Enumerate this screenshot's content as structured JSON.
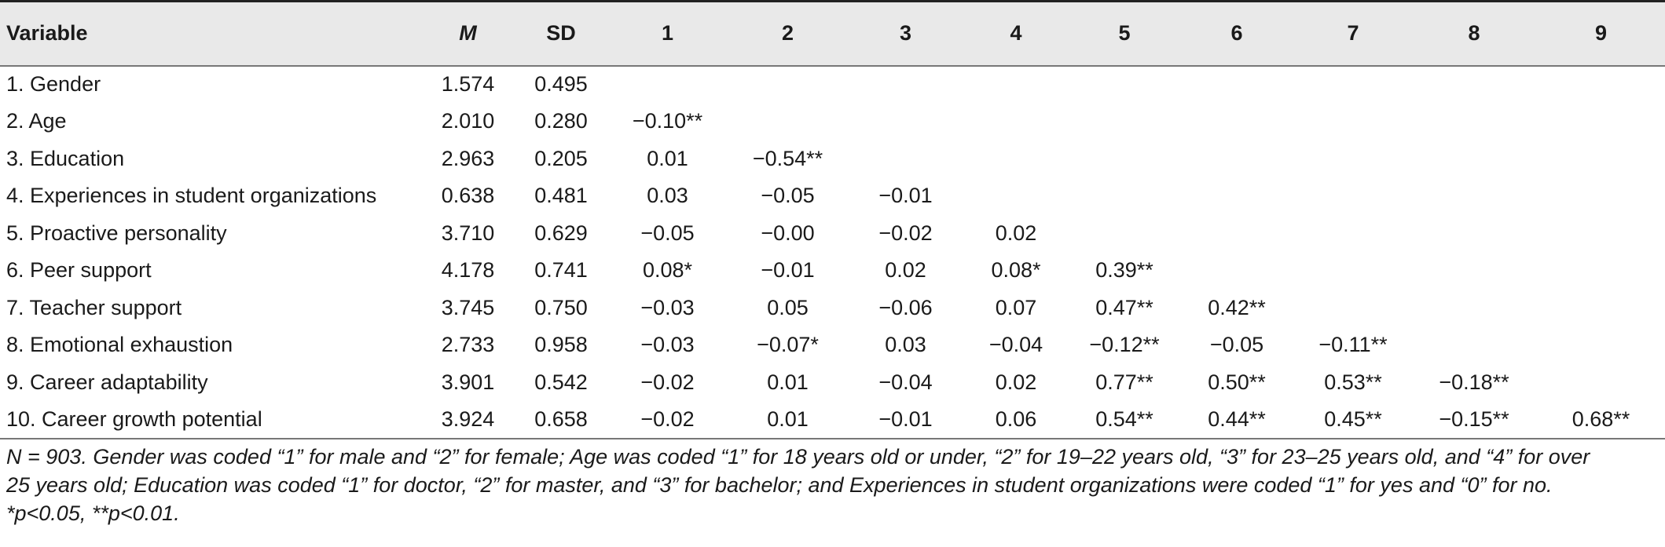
{
  "table": {
    "headers": [
      "Variable",
      "M",
      "SD",
      "1",
      "2",
      "3",
      "4",
      "5",
      "6",
      "7",
      "8",
      "9"
    ],
    "rows": [
      {
        "variable": "1. Gender",
        "m": "1.574",
        "sd": "0.495",
        "c1": "",
        "c2": "",
        "c3": "",
        "c4": "",
        "c5": "",
        "c6": "",
        "c7": "",
        "c8": "",
        "c9": ""
      },
      {
        "variable": "2. Age",
        "m": "2.010",
        "sd": "0.280",
        "c1": "−0.10**",
        "c2": "",
        "c3": "",
        "c4": "",
        "c5": "",
        "c6": "",
        "c7": "",
        "c8": "",
        "c9": ""
      },
      {
        "variable": "3. Education",
        "m": "2.963",
        "sd": "0.205",
        "c1": "0.01",
        "c2": "−0.54**",
        "c3": "",
        "c4": "",
        "c5": "",
        "c6": "",
        "c7": "",
        "c8": "",
        "c9": ""
      },
      {
        "variable": "4. Experiences in student organizations",
        "m": "0.638",
        "sd": "0.481",
        "c1": "0.03",
        "c2": "−0.05",
        "c3": "−0.01",
        "c4": "",
        "c5": "",
        "c6": "",
        "c7": "",
        "c8": "",
        "c9": ""
      },
      {
        "variable": "5. Proactive personality",
        "m": "3.710",
        "sd": "0.629",
        "c1": "−0.05",
        "c2": "−0.00",
        "c3": "−0.02",
        "c4": "0.02",
        "c5": "",
        "c6": "",
        "c7": "",
        "c8": "",
        "c9": ""
      },
      {
        "variable": "6. Peer support",
        "m": "4.178",
        "sd": "0.741",
        "c1": "0.08*",
        "c2": "−0.01",
        "c3": "0.02",
        "c4": "0.08*",
        "c5": "0.39**",
        "c6": "",
        "c7": "",
        "c8": "",
        "c9": ""
      },
      {
        "variable": "7. Teacher support",
        "m": "3.745",
        "sd": "0.750",
        "c1": "−0.03",
        "c2": "0.05",
        "c3": "−0.06",
        "c4": "0.07",
        "c5": "0.47**",
        "c6": "0.42**",
        "c7": "",
        "c8": "",
        "c9": ""
      },
      {
        "variable": "8. Emotional exhaustion",
        "m": "2.733",
        "sd": "0.958",
        "c1": "−0.03",
        "c2": "−0.07*",
        "c3": "0.03",
        "c4": "−0.04",
        "c5": "−0.12**",
        "c6": "−0.05",
        "c7": "−0.11**",
        "c8": "",
        "c9": ""
      },
      {
        "variable": "9. Career adaptability",
        "m": "3.901",
        "sd": "0.542",
        "c1": "−0.02",
        "c2": "0.01",
        "c3": "−0.04",
        "c4": "0.02",
        "c5": "0.77**",
        "c6": "0.50**",
        "c7": "0.53**",
        "c8": "−0.18**",
        "c9": ""
      },
      {
        "variable": "10. Career growth potential",
        "m": "3.924",
        "sd": "0.658",
        "c1": "−0.02",
        "c2": "0.01",
        "c3": "−0.01",
        "c4": "0.06",
        "c5": "0.54**",
        "c6": "0.44**",
        "c7": "0.45**",
        "c8": "−0.15**",
        "c9": "0.68**"
      }
    ]
  },
  "note": {
    "line1": "N = 903. Gender was coded “1” for male and “2” for female; Age was coded “1” for 18 years old or under, “2” for 19–22 years old, “3” for 23–25 years old, and “4” for over",
    "line2": "25 years old; Education was coded “1” for doctor, “2” for master, and “3” for bachelor; and Experiences in student organizations were coded “1” for yes and “0” for no.",
    "line3": "*p<0.05, **p<0.01."
  }
}
